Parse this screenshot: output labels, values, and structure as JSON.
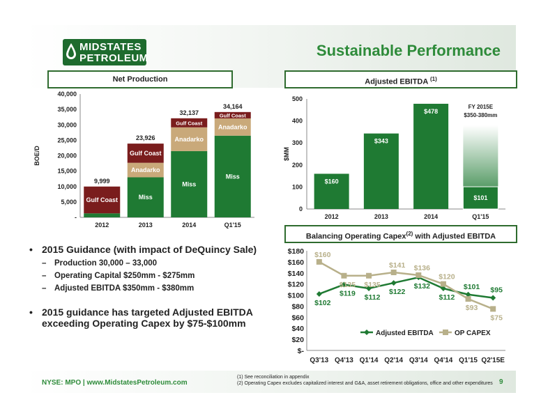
{
  "header": {
    "logo_line1": "MIDSTATES",
    "logo_line2": "PETROLEUM",
    "title": "Sustainable Performance"
  },
  "colors": {
    "miss": "#1f7a33",
    "anadarko": "#c9a97a",
    "gulf": "#7a1d1d",
    "ebitda_bar": "#1f7a33",
    "ebitda_bar_light": "#55c26a",
    "accent": "#2e8b3a",
    "line_ebitda": "#1f7a33",
    "line_capex": "#b8b08a"
  },
  "chart_data": [
    {
      "type": "bar",
      "title": "Net Production",
      "ylabel": "BOE/D",
      "ylim": [
        0,
        40000
      ],
      "yticks": [
        "-",
        "5,000",
        "10,000",
        "15,000",
        "20,000",
        "25,000",
        "30,000",
        "35,000",
        "40,000"
      ],
      "categories": [
        "2012",
        "2013",
        "2014",
        "Q1'15"
      ],
      "series": [
        {
          "name": "Miss",
          "values": [
            1300,
            13000,
            21500,
            26500
          ]
        },
        {
          "name": "Anadarko",
          "values": [
            0,
            4700,
            7700,
            5600
          ]
        },
        {
          "name": "Gulf Coast",
          "values": [
            8699,
            6226,
            2937,
            2064
          ]
        }
      ],
      "totals": [
        "9,999",
        "23,926",
        "32,137",
        "34,164"
      ]
    },
    {
      "type": "bar",
      "title": "Adjusted EBITDA",
      "title_note": "(1)",
      "ylabel": "$MM",
      "ylim": [
        0,
        500
      ],
      "yticks": [
        "0",
        "100",
        "200",
        "300",
        "400",
        "500"
      ],
      "categories": [
        "2012",
        "2013",
        "2014",
        "Q1'15"
      ],
      "values": [
        160,
        343,
        478,
        101
      ],
      "value_labels": [
        "$160",
        "$343",
        "$478",
        "$101"
      ],
      "guidance_range": [
        350,
        380
      ],
      "guidance_label_1": "FY 2015E",
      "guidance_label_2": "$350-380mm"
    },
    {
      "type": "line",
      "title": "Balancing Operating Capex",
      "title_note": "(2)",
      "title_suffix": "with Adjusted EBITDA",
      "ylim": [
        0,
        180
      ],
      "yticks": [
        "$-",
        "$20",
        "$40",
        "$60",
        "$80",
        "$100",
        "$120",
        "$140",
        "$160",
        "$180"
      ],
      "categories": [
        "Q3'13",
        "Q4'13",
        "Q1'14",
        "Q2'14",
        "Q3'14",
        "Q4'14",
        "Q1'15",
        "Q2'15E"
      ],
      "series": [
        {
          "name": "Adjusted EBITDA",
          "values": [
            102,
            119,
            112,
            122,
            132,
            112,
            101,
            95
          ],
          "labels": [
            "$102",
            "$119",
            "$112",
            "$122",
            "$132",
            "$112",
            "$101",
            "$95"
          ]
        },
        {
          "name": "OP CAPEX",
          "values": [
            160,
            135,
            135,
            141,
            136,
            120,
            93,
            75
          ],
          "labels": [
            "$160",
            "$135",
            "$135",
            "$141",
            "$136",
            "$120",
            "$93",
            "$75"
          ]
        }
      ]
    }
  ],
  "bullets": {
    "b1": "2015 Guidance (with impact of DeQuincy Sale)",
    "s1": "Production 30,000 – 33,000",
    "s2": "Operating Capital $250mm - $275mm",
    "s3": "Adjusted EBITDA $350mm - $380mm",
    "b2": "2015 guidance has targeted Adjusted EBITDA exceeding Operating Capex by $75-$100mm"
  },
  "footer": {
    "ticker": "NYSE: MPO | www.MidstatesPetroleum.com",
    "note1": "(1)     See reconciliation in appendix",
    "note2": "(2)     Operating Capex excludes capitalized interest and G&A, asset retirement obligations, office and other expenditures",
    "page": "9"
  }
}
